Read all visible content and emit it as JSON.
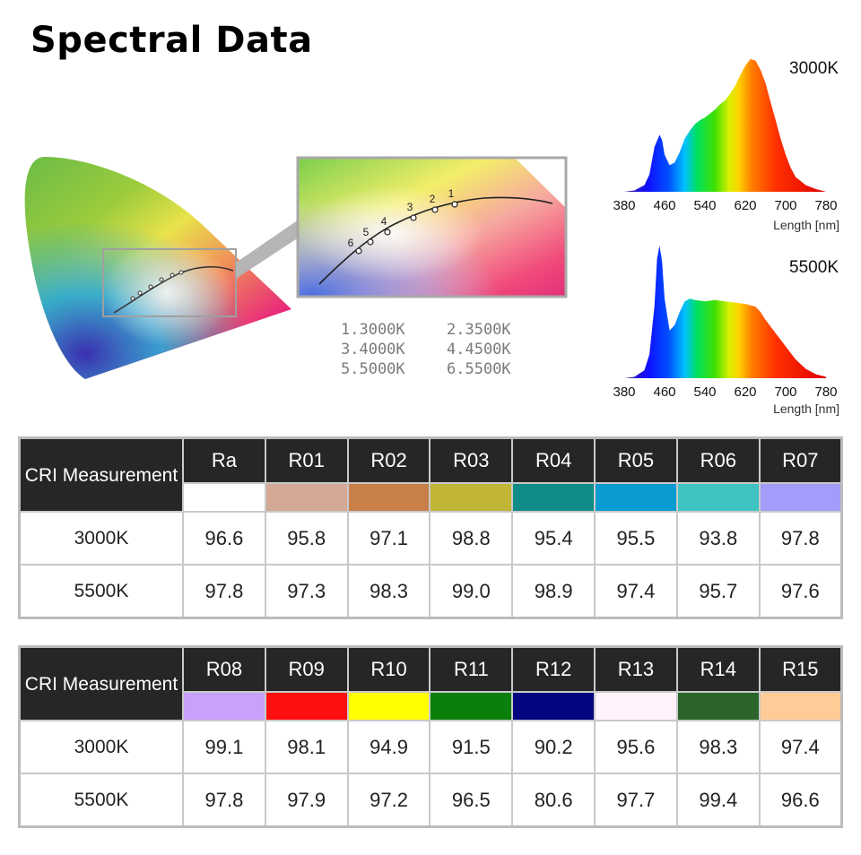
{
  "page": {
    "title": "Spectral Data"
  },
  "cie": {
    "points": [
      {
        "num": "1",
        "label": "1.3000K"
      },
      {
        "num": "2",
        "label": "2.3500K"
      },
      {
        "num": "3",
        "label": "3.4000K"
      },
      {
        "num": "4",
        "label": "4.4500K"
      },
      {
        "num": "5",
        "label": "5.5000K"
      },
      {
        "num": "6",
        "label": "6.5500K"
      }
    ]
  },
  "chart_data": [
    {
      "type": "area",
      "title": "3000K",
      "xlabel": "Length [nm]",
      "xticks": [
        "380",
        "460",
        "540",
        "620",
        "700",
        "780"
      ],
      "xlim": [
        380,
        780
      ],
      "ylim": [
        0,
        1
      ],
      "x": [
        380,
        400,
        420,
        430,
        440,
        450,
        455,
        460,
        470,
        480,
        490,
        500,
        510,
        520,
        530,
        540,
        550,
        560,
        570,
        580,
        590,
        600,
        610,
        620,
        630,
        640,
        650,
        660,
        670,
        680,
        690,
        700,
        710,
        720,
        740,
        760,
        780
      ],
      "values": [
        0.0,
        0.01,
        0.05,
        0.13,
        0.34,
        0.43,
        0.39,
        0.28,
        0.2,
        0.22,
        0.3,
        0.4,
        0.46,
        0.51,
        0.54,
        0.56,
        0.59,
        0.62,
        0.66,
        0.69,
        0.74,
        0.8,
        0.88,
        0.95,
        1.0,
        0.99,
        0.92,
        0.82,
        0.68,
        0.54,
        0.4,
        0.28,
        0.18,
        0.11,
        0.05,
        0.02,
        0.0
      ]
    },
    {
      "type": "area",
      "title": "5500K",
      "xlabel": "Length [nm]",
      "xticks": [
        "380",
        "460",
        "540",
        "620",
        "700",
        "780"
      ],
      "xlim": [
        380,
        780
      ],
      "ylim": [
        0,
        1
      ],
      "x": [
        380,
        400,
        420,
        430,
        440,
        445,
        450,
        455,
        460,
        470,
        480,
        490,
        500,
        510,
        520,
        540,
        560,
        580,
        600,
        620,
        640,
        650,
        660,
        680,
        700,
        720,
        740,
        760,
        780
      ],
      "values": [
        0.0,
        0.01,
        0.06,
        0.18,
        0.55,
        0.9,
        1.0,
        0.88,
        0.6,
        0.36,
        0.4,
        0.5,
        0.58,
        0.6,
        0.59,
        0.58,
        0.59,
        0.58,
        0.57,
        0.56,
        0.54,
        0.5,
        0.44,
        0.34,
        0.24,
        0.14,
        0.07,
        0.03,
        0.01
      ]
    },
    {
      "type": "table",
      "header": "CRI Measurement",
      "columns": [
        "Ra",
        "R01",
        "R02",
        "R03",
        "R04",
        "R05",
        "R06",
        "R07"
      ],
      "swatches": [
        "#ffffff",
        "#d3a995",
        "#c88048",
        "#c0b536",
        "#0f8c87",
        "#0a9bd0",
        "#3fc2c2",
        "#a29cfb"
      ],
      "rows": [
        {
          "label": "3000K",
          "values": [
            "96.6",
            "95.8",
            "97.1",
            "98.8",
            "95.4",
            "95.5",
            "93.8",
            "97.8"
          ]
        },
        {
          "label": "5500K",
          "values": [
            "97.8",
            "97.3",
            "98.3",
            "99.0",
            "98.9",
            "97.4",
            "95.7",
            "97.6"
          ]
        }
      ]
    },
    {
      "type": "table",
      "header": "CRI Measurement",
      "columns": [
        "R08",
        "R09",
        "R10",
        "R11",
        "R12",
        "R13",
        "R14",
        "R15"
      ],
      "swatches": [
        "#c9a0fb",
        "#ff0f0f",
        "#ffff00",
        "#0a7f0a",
        "#05057f",
        "#fff2fb",
        "#2b652b",
        "#ffcc98"
      ],
      "rows": [
        {
          "label": "3000K",
          "values": [
            "99.1",
            "98.1",
            "94.9",
            "91.5",
            "90.2",
            "95.6",
            "98.3",
            "97.4"
          ]
        },
        {
          "label": "5500K",
          "values": [
            "97.8",
            "97.9",
            "97.2",
            "96.5",
            "80.6",
            "97.7",
            "99.4",
            "96.6"
          ]
        }
      ]
    }
  ]
}
